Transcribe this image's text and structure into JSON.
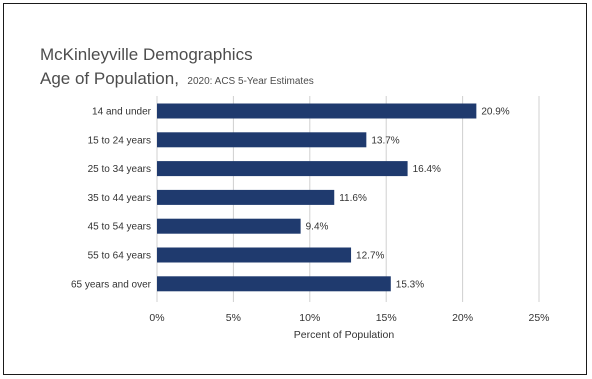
{
  "chart_data": {
    "type": "bar",
    "orientation": "horizontal",
    "title": "McKinleyville Demographics",
    "subtitle": "Age of Population,",
    "subtitle_note": "2020: ACS 5-Year Estimates",
    "xlabel": "Percent of Population",
    "ylabel": "",
    "categories": [
      "14 and under",
      "15 to 24 years",
      "25 to 34 years",
      "35 to 44 years",
      "45 to 54 years",
      "55 to 64 years",
      "65 years and over"
    ],
    "values": [
      20.9,
      13.7,
      16.4,
      11.6,
      9.4,
      12.7,
      15.3
    ],
    "value_labels": [
      "20.9%",
      "13.7%",
      "16.4%",
      "11.6%",
      "9.4%",
      "12.7%",
      "15.3%"
    ],
    "xlim": [
      0,
      25
    ],
    "xticks": [
      0,
      5,
      10,
      15,
      20,
      25
    ],
    "xtick_labels": [
      "0%",
      "5%",
      "10%",
      "15%",
      "20%",
      "25%"
    ],
    "grid": "vertical",
    "legend": "none",
    "colors": {
      "bar": "#1f3a6e",
      "grid": "#d0d0d0",
      "title": "#4d4d4d",
      "text": "#333333"
    }
  }
}
